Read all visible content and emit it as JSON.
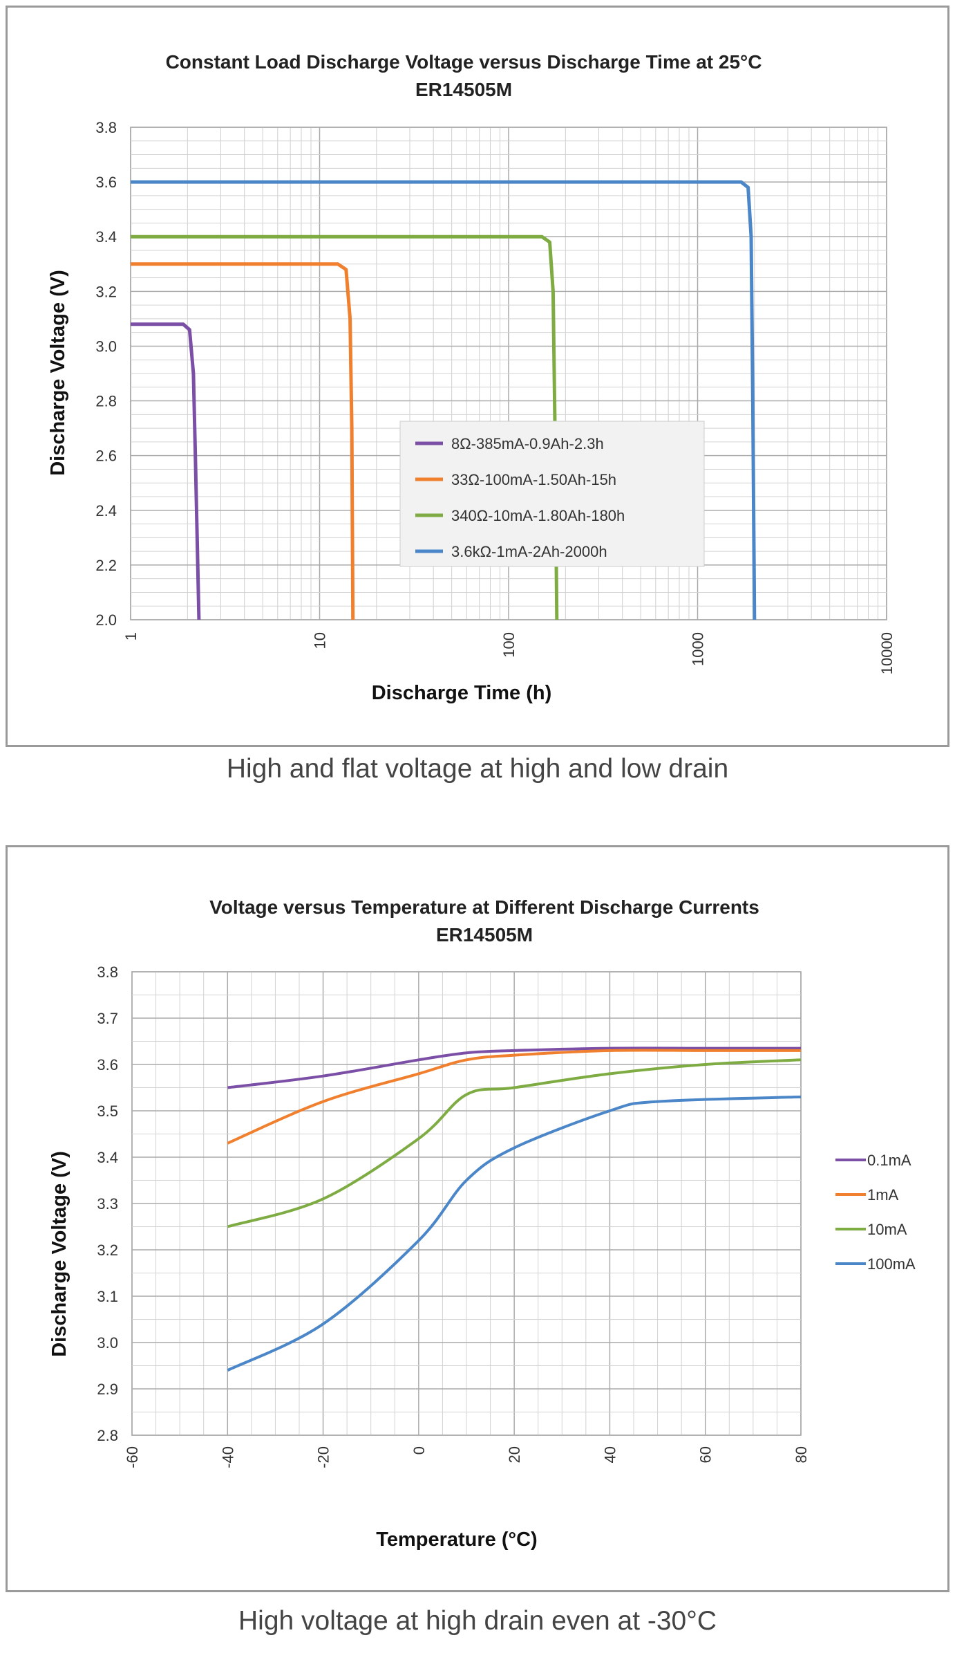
{
  "chart_data": [
    {
      "type": "line",
      "title": "Constant Load Discharge Voltage versus Discharge Time at 25°C",
      "subtitle": "ER14505M",
      "xlabel": "Discharge  Time (h)",
      "ylabel": "Discharge Voltage (V)",
      "x_scale": "log",
      "xlim": [
        1,
        10000
      ],
      "ylim": [
        2.0,
        3.8
      ],
      "x_ticks": [
        "1",
        "10",
        "100",
        "1000",
        "10000"
      ],
      "y_ticks": [
        "2.0",
        "2.2",
        "2.4",
        "2.6",
        "2.8",
        "3.0",
        "3.2",
        "3.4",
        "3.6",
        "3.8"
      ],
      "grid": true,
      "legend_position": "center-right",
      "series": [
        {
          "name": "8Ω-385mA-0.9Ah-2.3h",
          "color": "#7b4fa6",
          "points": [
            [
              1,
              3.08
            ],
            [
              1.9,
              3.08
            ],
            [
              2.05,
              3.06
            ],
            [
              2.15,
              2.9
            ],
            [
              2.2,
              2.6
            ],
            [
              2.25,
              2.3
            ],
            [
              2.3,
              2.0
            ]
          ]
        },
        {
          "name": "33Ω-100mA-1.50Ah-15h",
          "color": "#f07f2e",
          "points": [
            [
              1,
              3.3
            ],
            [
              12.5,
              3.3
            ],
            [
              13.8,
              3.28
            ],
            [
              14.5,
              3.1
            ],
            [
              14.8,
              2.7
            ],
            [
              15,
              2.0
            ]
          ]
        },
        {
          "name": "340Ω-10mA-1.80Ah-180h",
          "color": "#7eac43",
          "points": [
            [
              1,
              3.4
            ],
            [
              150,
              3.4
            ],
            [
              165,
              3.38
            ],
            [
              172,
              3.2
            ],
            [
              176,
              2.7
            ],
            [
              180,
              2.0
            ]
          ]
        },
        {
          "name": "3.6kΩ-1mA-2Ah-2000h",
          "color": "#4a86c8",
          "points": [
            [
              1,
              3.6
            ],
            [
              1700,
              3.6
            ],
            [
              1850,
              3.58
            ],
            [
              1920,
              3.4
            ],
            [
              1960,
              2.8
            ],
            [
              2000,
              2.0
            ]
          ]
        }
      ]
    },
    {
      "type": "line",
      "title": "Voltage versus Temperature at Different Discharge Currents",
      "subtitle": "ER14505M",
      "xlabel": "Temperature (°C)",
      "ylabel": "Discharge Voltage (V)",
      "xlim": [
        -60,
        80
      ],
      "ylim": [
        2.8,
        3.8
      ],
      "x_ticks": [
        "-60",
        "-40",
        "-20",
        "0",
        "20",
        "40",
        "60",
        "80"
      ],
      "y_ticks": [
        "2.8",
        "2.9",
        "3.0",
        "3.1",
        "3.2",
        "3.3",
        "3.4",
        "3.5",
        "3.6",
        "3.7",
        "3.8"
      ],
      "grid": true,
      "legend_position": "right",
      "series": [
        {
          "name": "0.1mA",
          "color": "#7b4fa6",
          "points": [
            [
              -40,
              3.55
            ],
            [
              -20,
              3.575
            ],
            [
              0,
              3.61
            ],
            [
              10,
              3.625
            ],
            [
              20,
              3.63
            ],
            [
              40,
              3.635
            ],
            [
              60,
              3.635
            ],
            [
              80,
              3.635
            ]
          ]
        },
        {
          "name": "1mA",
          "color": "#f07f2e",
          "points": [
            [
              -40,
              3.43
            ],
            [
              -20,
              3.52
            ],
            [
              0,
              3.58
            ],
            [
              10,
              3.61
            ],
            [
              20,
              3.62
            ],
            [
              40,
              3.63
            ],
            [
              60,
              3.63
            ],
            [
              80,
              3.63
            ]
          ]
        },
        {
          "name": "10mA",
          "color": "#7eac43",
          "points": [
            [
              -40,
              3.25
            ],
            [
              -20,
              3.31
            ],
            [
              0,
              3.44
            ],
            [
              10,
              3.535
            ],
            [
              20,
              3.55
            ],
            [
              40,
              3.58
            ],
            [
              60,
              3.6
            ],
            [
              80,
              3.61
            ]
          ]
        },
        {
          "name": "100mA",
          "color": "#4a86c8",
          "points": [
            [
              -40,
              2.94
            ],
            [
              -20,
              3.04
            ],
            [
              0,
              3.22
            ],
            [
              10,
              3.35
            ],
            [
              20,
              3.42
            ],
            [
              40,
              3.5
            ],
            [
              50,
              3.52
            ],
            [
              80,
              3.53
            ]
          ]
        }
      ]
    }
  ],
  "captions": {
    "chart1": "High and flat voltage at high and low drain",
    "chart2": "High voltage at high drain even at -30°C"
  }
}
